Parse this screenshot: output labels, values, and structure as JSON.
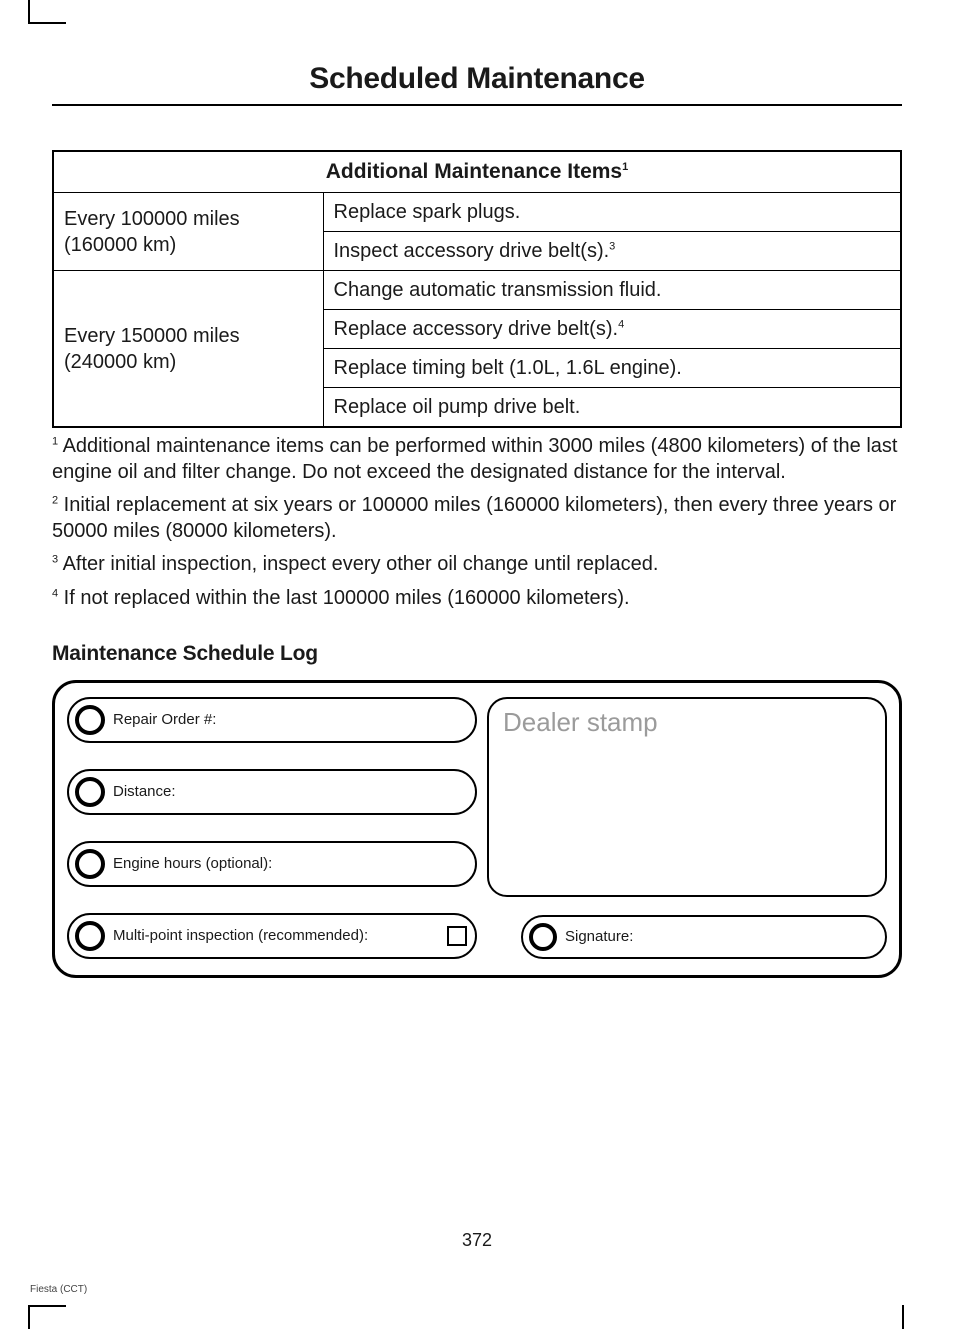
{
  "page_title": "Scheduled Maintenance",
  "table": {
    "header": "Additional Maintenance Items",
    "header_sup": "1",
    "rows": [
      {
        "interval_line1": "Every 100000 miles",
        "interval_line2": "(160000 km)",
        "items": [
          {
            "text": "Replace spark plugs.",
            "sup": ""
          },
          {
            "text": "Inspect accessory drive belt(s).",
            "sup": "3"
          }
        ]
      },
      {
        "interval_line1": "Every 150000 miles",
        "interval_line2": "(240000 km)",
        "items": [
          {
            "text": "Change automatic transmission fluid.",
            "sup": ""
          },
          {
            "text": "Replace accessory drive belt(s).",
            "sup": "4"
          },
          {
            "text": "Replace timing belt (1.0L, 1.6L engine).",
            "sup": ""
          },
          {
            "text": "Replace oil pump drive belt.",
            "sup": ""
          }
        ]
      }
    ]
  },
  "footnotes": [
    {
      "sup": "1",
      "text": " Additional maintenance items can be performed within 3000 miles (4800 kilometers) of the last engine oil and filter change. Do not exceed the designated distance for the interval."
    },
    {
      "sup": "2",
      "text": " Initial replacement at six years or 100000 miles (160000 kilometers), then every three years or 50000 miles (80000 kilometers)."
    },
    {
      "sup": "3",
      "text": " After initial inspection, inspect every other oil change until replaced."
    },
    {
      "sup": "4",
      "text": " If not replaced within the last 100000 miles (160000 kilometers)."
    }
  ],
  "log_heading": "Maintenance Schedule Log",
  "log": {
    "repair_order": "Repair Order #:",
    "distance": "Distance:",
    "engine_hours": "Engine hours (optional):",
    "multipoint": "Multi-point inspection (recommended):",
    "dealer_stamp": "Dealer stamp",
    "signature": "Signature:"
  },
  "page_number": "372",
  "book_ref": "Fiesta (CCT)"
}
